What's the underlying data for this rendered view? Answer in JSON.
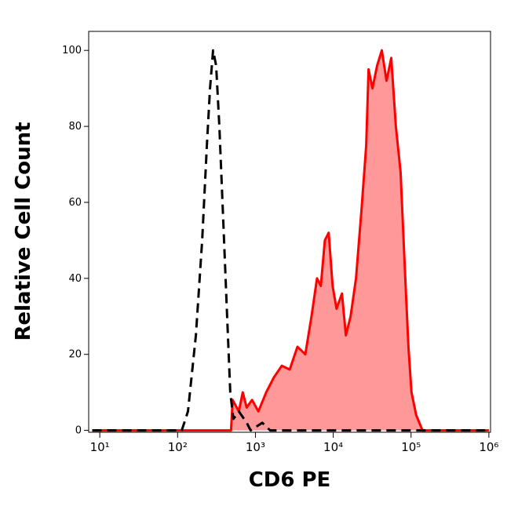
{
  "chart_data": {
    "type": "line",
    "xlabel": "CD6 PE",
    "ylabel": "Relative Cell Count",
    "xscale": "log",
    "xlim": [
      7.2,
      1050000
    ],
    "ylim": [
      -0.5,
      105
    ],
    "xticks": [
      {
        "value": 10,
        "label": "10¹"
      },
      {
        "value": 100,
        "label": "10²"
      },
      {
        "value": 1000,
        "label": "10³"
      },
      {
        "value": 10000,
        "label": "10⁴"
      },
      {
        "value": 100000,
        "label": "10⁵"
      },
      {
        "value": 1000000,
        "label": "10⁶"
      }
    ],
    "yticks": [
      0,
      20,
      40,
      60,
      80,
      100
    ],
    "series": [
      {
        "color": "#000000",
        "style": "dashed",
        "x": [
          8,
          113,
          136,
          172,
          207,
          238,
          261,
          286,
          313,
          344,
          386,
          433,
          475,
          521,
          612,
          772,
          867,
          1225,
          1545,
          1000000
        ],
        "values": [
          0,
          0,
          5,
          25,
          50,
          75,
          90,
          100,
          96,
          80,
          55,
          30,
          10,
          3,
          5,
          2,
          0,
          2,
          0,
          0
        ]
      },
      {
        "color": "#ff0000",
        "fill": "#ff9999",
        "style": "solid",
        "x": [
          8,
          486,
          509,
          612,
          688,
          772,
          907,
          1091,
          1377,
          1734,
          2183,
          2754,
          3467,
          4375,
          5260,
          6180,
          6935,
          7800,
          8750,
          9820,
          11020,
          12940,
          14550,
          16710,
          19630,
          23070,
          26550,
          28440,
          31920,
          36650,
          42070,
          48420,
          55590,
          63830,
          73280,
          84330,
          92470,
          101400,
          116400,
          140300,
          1000000
        ],
        "values": [
          0,
          0,
          8,
          5,
          10,
          6,
          8,
          5,
          10,
          14,
          17,
          16,
          22,
          20,
          30,
          40,
          38,
          50,
          52,
          38,
          32,
          36,
          25,
          30,
          40,
          58,
          75,
          95,
          90,
          96,
          100,
          92,
          98,
          80,
          68,
          40,
          22,
          10,
          4,
          0,
          0
        ]
      }
    ]
  }
}
